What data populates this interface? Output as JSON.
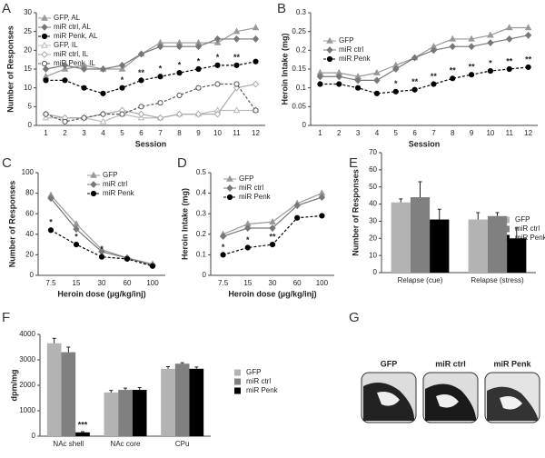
{
  "chart_data": [
    {
      "type": "line",
      "label": "A",
      "xlabel": "Session",
      "ylabel": "Number of Responses",
      "categories": [
        1,
        2,
        3,
        4,
        5,
        6,
        7,
        8,
        9,
        10,
        11,
        12
      ],
      "ylim": [
        0,
        30
      ],
      "yticks": [
        0,
        5,
        10,
        15,
        20,
        25,
        30
      ],
      "series": [
        {
          "name": "GFP, AL",
          "color": "#999999",
          "marker": "triangle",
          "dash": false,
          "values": [
            13,
            15,
            16,
            15,
            15,
            19,
            22,
            22,
            22,
            22,
            25,
            26
          ]
        },
        {
          "name": "miR ctrl, AL",
          "color": "#777777",
          "marker": "diamond",
          "dash": false,
          "values": [
            15,
            16,
            15,
            15,
            16,
            19,
            21,
            21,
            21,
            23,
            23,
            23
          ]
        },
        {
          "name": "miR Penk, AL",
          "color": "#000000",
          "marker": "circle",
          "dash": true,
          "values": [
            12,
            12,
            10,
            8.5,
            10,
            12,
            13,
            14,
            15,
            16,
            16,
            17
          ]
        },
        {
          "name": "GFP, IL",
          "color": "#bbbbbb",
          "marker": "triangle-open",
          "dash": false,
          "values": [
            2,
            2,
            2,
            1,
            3,
            2,
            2,
            3,
            3,
            4,
            4,
            4
          ]
        },
        {
          "name": "miR ctrl, IL",
          "color": "#aaaaaa",
          "marker": "diamond-open",
          "dash": false,
          "values": [
            3,
            2,
            2,
            3,
            4,
            3,
            2,
            3,
            3,
            3,
            10,
            11
          ]
        },
        {
          "name": "miR Penk, IL",
          "color": "#555555",
          "marker": "circle-open",
          "dash": true,
          "values": [
            3,
            1,
            2,
            3,
            3,
            5,
            6,
            8,
            10,
            11,
            11,
            4
          ]
        }
      ],
      "annotations": [
        {
          "category": 5,
          "label": "*"
        },
        {
          "category": 6,
          "label": "**"
        },
        {
          "category": 7,
          "label": "*"
        },
        {
          "category": 8,
          "label": "*"
        },
        {
          "category": 9,
          "label": "*"
        },
        {
          "category": 10,
          "label": "*"
        },
        {
          "category": 11,
          "label": "**"
        }
      ]
    },
    {
      "type": "line",
      "label": "B",
      "xlabel": "Session",
      "ylabel": "Heroin Intake (mg)",
      "categories": [
        1,
        2,
        3,
        4,
        5,
        6,
        7,
        8,
        9,
        10,
        11,
        12
      ],
      "ylim": [
        0,
        0.3
      ],
      "yticks": [
        0,
        0.05,
        0.1,
        0.15,
        0.2,
        0.25,
        0.3
      ],
      "series": [
        {
          "name": "GFP",
          "color": "#999999",
          "marker": "triangle",
          "dash": false,
          "values": [
            0.14,
            0.14,
            0.13,
            0.14,
            0.16,
            0.18,
            0.21,
            0.23,
            0.23,
            0.24,
            0.26,
            0.26
          ]
        },
        {
          "name": "miR ctrl",
          "color": "#777777",
          "marker": "diamond",
          "dash": false,
          "values": [
            0.13,
            0.13,
            0.12,
            0.12,
            0.15,
            0.18,
            0.2,
            0.21,
            0.21,
            0.22,
            0.23,
            0.24
          ]
        },
        {
          "name": "miR Penk",
          "color": "#000000",
          "marker": "circle",
          "dash": true,
          "values": [
            0.11,
            0.11,
            0.1,
            0.085,
            0.09,
            0.095,
            0.11,
            0.125,
            0.135,
            0.145,
            0.15,
            0.155
          ]
        }
      ],
      "annotations": [
        {
          "category": 5,
          "label": "*"
        },
        {
          "category": 6,
          "label": "**"
        },
        {
          "category": 7,
          "label": "**"
        },
        {
          "category": 8,
          "label": "**"
        },
        {
          "category": 9,
          "label": "**"
        },
        {
          "category": 10,
          "label": "*"
        },
        {
          "category": 11,
          "label": "**"
        },
        {
          "category": 12,
          "label": "**"
        }
      ]
    },
    {
      "type": "line",
      "label": "C",
      "xlabel": "Heroin dose (µg/kg/inj)",
      "ylabel": "Number of Responses",
      "categories": [
        "7.5",
        "15",
        "30",
        "60",
        "100"
      ],
      "ylim": [
        0,
        100
      ],
      "yticks": [
        0,
        20,
        40,
        60,
        80,
        100
      ],
      "series": [
        {
          "name": "GFP",
          "color": "#999999",
          "marker": "triangle",
          "dash": false,
          "values": [
            78,
            50,
            25,
            17,
            11
          ]
        },
        {
          "name": "miR ctrl",
          "color": "#777777",
          "marker": "diamond",
          "dash": false,
          "values": [
            75,
            45,
            23,
            17,
            10
          ]
        },
        {
          "name": "miR Penk",
          "color": "#000000",
          "marker": "circle",
          "dash": true,
          "values": [
            44,
            30,
            18,
            16,
            9
          ]
        }
      ],
      "annotations": [
        {
          "category": "7.5",
          "label": "*"
        },
        {
          "category": "15",
          "label": "*"
        },
        {
          "category": "30",
          "label": "*"
        }
      ]
    },
    {
      "type": "line",
      "label": "D",
      "xlabel": "Heroin dose (µg/kg/inj)",
      "ylabel": "Heroin Intake (mg)",
      "categories": [
        "7.5",
        "15",
        "30",
        "60",
        "100"
      ],
      "ylim": [
        0,
        0.5
      ],
      "yticks": [
        0,
        0.1,
        0.2,
        0.3,
        0.4,
        0.5
      ],
      "series": [
        {
          "name": "GFP",
          "color": "#999999",
          "marker": "triangle",
          "dash": false,
          "values": [
            0.2,
            0.25,
            0.26,
            0.35,
            0.4
          ]
        },
        {
          "name": "miR ctrl",
          "color": "#777777",
          "marker": "diamond",
          "dash": false,
          "values": [
            0.19,
            0.23,
            0.23,
            0.34,
            0.38
          ]
        },
        {
          "name": "miR Penk",
          "color": "#000000",
          "marker": "circle",
          "dash": true,
          "values": [
            0.1,
            0.135,
            0.15,
            0.28,
            0.29
          ]
        }
      ],
      "annotations": [
        {
          "category": "7.5",
          "label": "*"
        },
        {
          "category": "15",
          "label": "*"
        },
        {
          "category": "30",
          "label": "**"
        }
      ]
    },
    {
      "type": "bar",
      "label": "E",
      "ylabel": "Number of Responses",
      "categories": [
        "Relapse (cue)",
        "Relapse (stress)"
      ],
      "ylim": [
        0,
        70
      ],
      "yticks": [
        0,
        10,
        20,
        30,
        40,
        50,
        60,
        70
      ],
      "series": [
        {
          "name": "GFP",
          "color": "#b3b3b3",
          "values": [
            41,
            31
          ],
          "errors": [
            2,
            4
          ]
        },
        {
          "name": "miR ctrl",
          "color": "#808080",
          "values": [
            44,
            33
          ],
          "errors": [
            9,
            2
          ]
        },
        {
          "name": "miR Penk",
          "color": "#000000",
          "values": [
            31,
            20
          ],
          "errors": [
            6,
            6
          ]
        }
      ],
      "annotations": []
    },
    {
      "type": "bar",
      "label": "F",
      "ylabel": "dpm/mg",
      "categories": [
        "NAc shell",
        "NAc core",
        "CPu"
      ],
      "ylim": [
        0,
        4000
      ],
      "yticks": [
        0,
        1000,
        2000,
        3000,
        4000
      ],
      "series": [
        {
          "name": "GFP",
          "color": "#b3b3b3",
          "values": [
            3650,
            1720,
            2650
          ],
          "errors": [
            200,
            80,
            80
          ]
        },
        {
          "name": "miR ctrl",
          "color": "#808080",
          "values": [
            3300,
            1820,
            2850
          ],
          "errors": [
            200,
            70,
            40
          ]
        },
        {
          "name": "miR Penk",
          "color": "#000000",
          "values": [
            150,
            1820,
            2650
          ],
          "errors": [
            30,
            90,
            70
          ]
        }
      ],
      "annotations": [
        {
          "category": "NAc shell",
          "label": "***"
        }
      ]
    }
  ],
  "panel_g": {
    "label": "G",
    "captions": [
      "GFP",
      "miR ctrl",
      "miR Penk"
    ]
  }
}
